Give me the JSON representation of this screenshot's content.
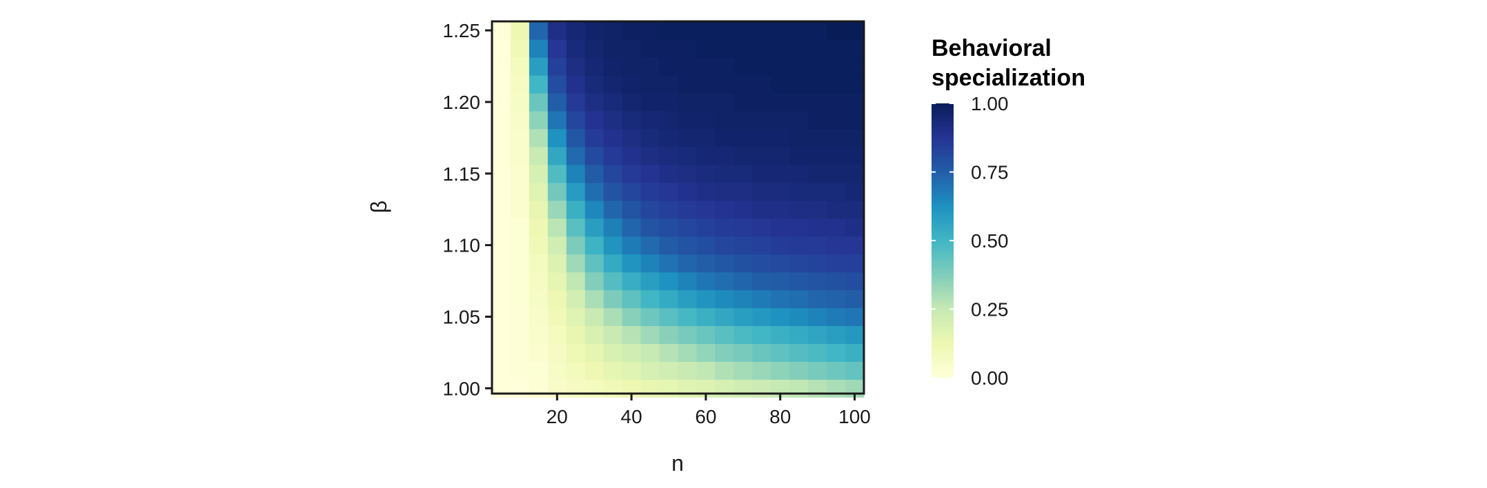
{
  "chart_data": {
    "type": "heatmap",
    "title": "",
    "xlabel": "n",
    "ylabel": "β",
    "x_ticks": [
      20,
      40,
      60,
      80,
      100
    ],
    "x_tick_labels": [
      "20",
      "40",
      "60",
      "80",
      "100"
    ],
    "y_ticks": [
      1.0,
      1.05,
      1.1,
      1.15,
      1.2,
      1.25
    ],
    "y_tick_labels": [
      "1.00",
      "1.05",
      "1.10",
      "1.15",
      "1.20",
      "1.25"
    ],
    "xlim": [
      2.5,
      102.5
    ],
    "ylim": [
      0.9963,
      1.2563
    ],
    "x_values": [
      5,
      10,
      15,
      20,
      25,
      30,
      35,
      40,
      45,
      50,
      55,
      60,
      65,
      70,
      75,
      80,
      85,
      90,
      95,
      100
    ],
    "y_values": [
      1.0,
      1.0125,
      1.025,
      1.0375,
      1.05,
      1.0625,
      1.075,
      1.0875,
      1.1,
      1.1125,
      1.125,
      1.1375,
      1.15,
      1.1625,
      1.175,
      1.1875,
      1.2,
      1.2125,
      1.225,
      1.2375,
      1.25
    ],
    "z_description": "Behavioral specialization per (n, β) cell; values estimated from colour (0 = pale yellow, 1 = dark navy)",
    "z": [
      [
        0.0,
        0.0,
        0.02,
        0.05,
        0.07,
        0.08,
        0.1,
        0.12,
        0.14,
        0.15,
        0.17,
        0.18,
        0.2,
        0.22,
        0.23,
        0.25,
        0.26,
        0.28,
        0.3,
        0.32
      ],
      [
        0.0,
        0.01,
        0.02,
        0.06,
        0.09,
        0.12,
        0.15,
        0.17,
        0.2,
        0.22,
        0.24,
        0.26,
        0.29,
        0.31,
        0.33,
        0.35,
        0.37,
        0.39,
        0.41,
        0.43
      ],
      [
        0.0,
        0.01,
        0.03,
        0.07,
        0.11,
        0.15,
        0.19,
        0.22,
        0.25,
        0.28,
        0.31,
        0.34,
        0.37,
        0.39,
        0.42,
        0.44,
        0.46,
        0.48,
        0.5,
        0.52
      ],
      [
        0.0,
        0.01,
        0.04,
        0.08,
        0.14,
        0.19,
        0.24,
        0.28,
        0.32,
        0.36,
        0.39,
        0.42,
        0.45,
        0.48,
        0.5,
        0.52,
        0.54,
        0.56,
        0.58,
        0.6
      ],
      [
        0.0,
        0.01,
        0.05,
        0.1,
        0.17,
        0.24,
        0.3,
        0.36,
        0.41,
        0.45,
        0.49,
        0.52,
        0.55,
        0.58,
        0.6,
        0.62,
        0.64,
        0.66,
        0.68,
        0.69
      ],
      [
        0.0,
        0.02,
        0.06,
        0.12,
        0.21,
        0.3,
        0.38,
        0.44,
        0.5,
        0.54,
        0.58,
        0.61,
        0.64,
        0.66,
        0.68,
        0.7,
        0.71,
        0.73,
        0.74,
        0.75
      ],
      [
        0.0,
        0.02,
        0.07,
        0.15,
        0.26,
        0.37,
        0.46,
        0.53,
        0.58,
        0.62,
        0.66,
        0.69,
        0.71,
        0.73,
        0.75,
        0.76,
        0.77,
        0.78,
        0.79,
        0.8
      ],
      [
        0.0,
        0.02,
        0.08,
        0.18,
        0.32,
        0.44,
        0.54,
        0.61,
        0.66,
        0.7,
        0.73,
        0.75,
        0.77,
        0.79,
        0.8,
        0.81,
        0.82,
        0.83,
        0.84,
        0.84
      ],
      [
        0.0,
        0.02,
        0.1,
        0.22,
        0.38,
        0.51,
        0.61,
        0.68,
        0.72,
        0.76,
        0.78,
        0.8,
        0.82,
        0.83,
        0.84,
        0.85,
        0.86,
        0.86,
        0.87,
        0.87
      ],
      [
        0.0,
        0.02,
        0.12,
        0.27,
        0.45,
        0.58,
        0.67,
        0.73,
        0.78,
        0.8,
        0.82,
        0.84,
        0.85,
        0.86,
        0.87,
        0.88,
        0.88,
        0.89,
        0.89,
        0.9
      ],
      [
        0.0,
        0.03,
        0.14,
        0.33,
        0.52,
        0.65,
        0.73,
        0.78,
        0.82,
        0.84,
        0.86,
        0.87,
        0.88,
        0.89,
        0.9,
        0.9,
        0.91,
        0.91,
        0.92,
        0.92
      ],
      [
        0.0,
        0.03,
        0.17,
        0.4,
        0.59,
        0.71,
        0.78,
        0.82,
        0.85,
        0.87,
        0.89,
        0.9,
        0.91,
        0.91,
        0.92,
        0.92,
        0.93,
        0.93,
        0.93,
        0.94
      ],
      [
        0.0,
        0.03,
        0.2,
        0.47,
        0.66,
        0.76,
        0.82,
        0.86,
        0.88,
        0.9,
        0.91,
        0.92,
        0.93,
        0.93,
        0.94,
        0.94,
        0.94,
        0.95,
        0.95,
        0.95
      ],
      [
        0.0,
        0.04,
        0.24,
        0.55,
        0.72,
        0.81,
        0.86,
        0.89,
        0.91,
        0.92,
        0.93,
        0.94,
        0.94,
        0.95,
        0.95,
        0.95,
        0.96,
        0.96,
        0.96,
        0.96
      ],
      [
        0.0,
        0.04,
        0.29,
        0.62,
        0.77,
        0.85,
        0.89,
        0.91,
        0.93,
        0.94,
        0.95,
        0.95,
        0.96,
        0.96,
        0.96,
        0.96,
        0.97,
        0.97,
        0.97,
        0.97
      ],
      [
        0.0,
        0.05,
        0.35,
        0.69,
        0.82,
        0.88,
        0.91,
        0.93,
        0.94,
        0.95,
        0.96,
        0.96,
        0.97,
        0.97,
        0.97,
        0.97,
        0.97,
        0.98,
        0.98,
        0.98
      ],
      [
        0.0,
        0.06,
        0.42,
        0.75,
        0.86,
        0.91,
        0.93,
        0.95,
        0.96,
        0.96,
        0.97,
        0.97,
        0.97,
        0.98,
        0.98,
        0.98,
        0.98,
        0.98,
        0.98,
        0.98
      ],
      [
        0.0,
        0.07,
        0.5,
        0.8,
        0.89,
        0.93,
        0.95,
        0.96,
        0.97,
        0.97,
        0.98,
        0.98,
        0.98,
        0.98,
        0.98,
        0.99,
        0.99,
        0.99,
        0.99,
        0.99
      ],
      [
        0.0,
        0.08,
        0.58,
        0.84,
        0.91,
        0.94,
        0.96,
        0.97,
        0.97,
        0.98,
        0.98,
        0.98,
        0.98,
        0.99,
        0.99,
        0.99,
        0.99,
        0.99,
        0.99,
        0.99
      ],
      [
        0.0,
        0.1,
        0.66,
        0.87,
        0.93,
        0.95,
        0.97,
        0.97,
        0.98,
        0.98,
        0.98,
        0.99,
        0.99,
        0.99,
        0.99,
        0.99,
        0.99,
        0.99,
        0.99,
        0.99
      ],
      [
        0.0,
        0.12,
        0.73,
        0.9,
        0.94,
        0.96,
        0.97,
        0.98,
        0.98,
        0.99,
        0.99,
        0.99,
        0.99,
        0.99,
        0.99,
        0.99,
        0.99,
        0.99,
        1.0,
        1.0
      ]
    ],
    "legend": {
      "title_line1": "Behavioral",
      "title_line2": "specialization",
      "ticks": [
        0.0,
        0.25,
        0.5,
        0.75,
        1.0
      ],
      "tick_labels": [
        "0.00",
        "0.25",
        "0.50",
        "0.75",
        "1.00"
      ],
      "range": [
        0.0,
        1.0
      ],
      "placement": "right"
    },
    "colormap": [
      "#ffffd9",
      "#edf8b1",
      "#c7e9b4",
      "#7fcdbb",
      "#41b6c4",
      "#1d91c0",
      "#225ea8",
      "#253494",
      "#081d58"
    ]
  }
}
